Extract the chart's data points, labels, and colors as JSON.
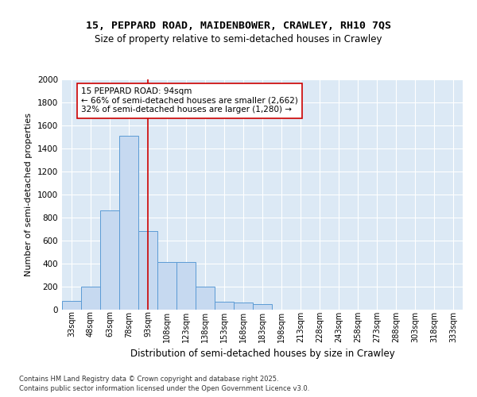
{
  "title": "15, PEPPARD ROAD, MAIDENBOWER, CRAWLEY, RH10 7QS",
  "subtitle": "Size of property relative to semi-detached houses in Crawley",
  "xlabel": "Distribution of semi-detached houses by size in Crawley",
  "ylabel": "Number of semi-detached properties",
  "categories": [
    "33sqm",
    "48sqm",
    "63sqm",
    "78sqm",
    "93sqm",
    "108sqm",
    "123sqm",
    "138sqm",
    "153sqm",
    "168sqm",
    "183sqm",
    "198sqm",
    "213sqm",
    "228sqm",
    "243sqm",
    "258sqm",
    "273sqm",
    "288sqm",
    "303sqm",
    "318sqm",
    "333sqm"
  ],
  "bar_heights": [
    75,
    200,
    860,
    1510,
    680,
    415,
    415,
    200,
    70,
    60,
    50,
    0,
    0,
    0,
    0,
    0,
    0,
    0,
    0,
    0,
    0
  ],
  "bar_color": "#c6d9f0",
  "bar_edge_color": "#5b9bd5",
  "vline_x": 4,
  "vline_color": "#cc0000",
  "annotation_text": "15 PEPPARD ROAD: 94sqm\n← 66% of semi-detached houses are smaller (2,662)\n32% of semi-detached houses are larger (1,280) →",
  "annotation_box_color": "#ffffff",
  "annotation_box_edge": "#cc0000",
  "ylim": [
    0,
    2000
  ],
  "yticks": [
    0,
    200,
    400,
    600,
    800,
    1000,
    1200,
    1400,
    1600,
    1800,
    2000
  ],
  "background_color": "#dce9f5",
  "footer_line1": "Contains HM Land Registry data © Crown copyright and database right 2025.",
  "footer_line2": "Contains public sector information licensed under the Open Government Licence v3.0."
}
